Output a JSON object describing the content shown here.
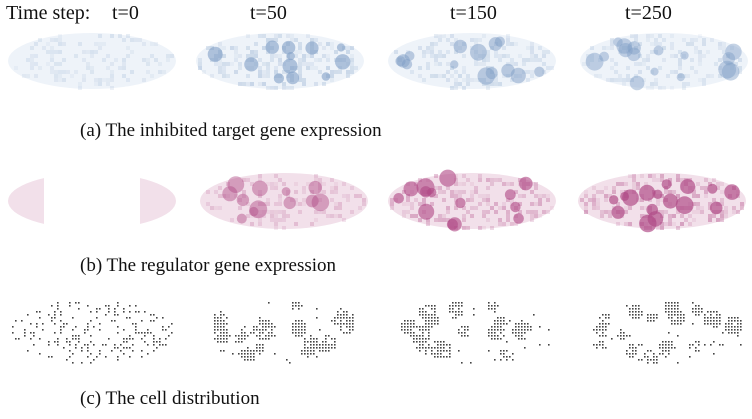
{
  "header": {
    "prefix": "Time step:",
    "steps": [
      "t=0",
      "t=50",
      "t=150",
      "t=250"
    ]
  },
  "rows": [
    {
      "caption": "(a)  The inhibited target gene expression",
      "palette": "blue",
      "colors": {
        "base": "#eef3f9",
        "spot": "#7f9ec6"
      },
      "intensity": [
        0.35,
        0.75,
        0.55,
        0.45
      ]
    },
    {
      "caption": "(b)  The regulator gene expression",
      "palette": "pink",
      "colors": {
        "base": "#f2e0ea",
        "spot": "#b04a86"
      },
      "intensity": [
        0.2,
        0.45,
        0.8,
        0.95
      ]
    },
    {
      "caption": "(c)  The cell distribution",
      "palette": "gray",
      "colors": {
        "base": "#ffffff",
        "spot": "#444444"
      },
      "intensity": [
        0.3,
        0.7,
        0.75,
        0.75
      ]
    }
  ]
}
